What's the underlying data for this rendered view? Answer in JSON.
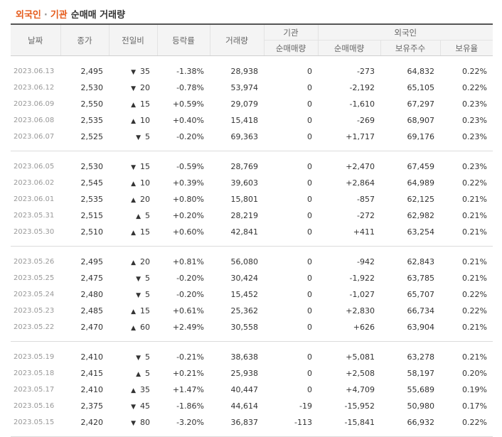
{
  "title": {
    "part1": "외국인",
    "separator": "·",
    "part2": "기관",
    "rest": "순매매 거래량"
  },
  "headers": {
    "date": "날짜",
    "close": "종가",
    "change": "전일비",
    "rate": "등락률",
    "volume": "거래량",
    "institution": "기관",
    "inst_net": "순매매량",
    "foreign": "외국인",
    "for_net": "순매매량",
    "shares": "보유주수",
    "hold_rate": "보유율"
  },
  "colors": {
    "up": "#d0021b",
    "down": "#1a6fc4",
    "accent": "#e55a1a"
  },
  "groups": [
    {
      "rows": [
        {
          "date": "2023.06.13",
          "close": "2,495",
          "dir": "down",
          "diff": "35",
          "rate": "-1.38%",
          "volume": "28,938",
          "inst": "0",
          "foreign": "-273",
          "shares": "64,832",
          "hold": "0.22%"
        },
        {
          "date": "2023.06.12",
          "close": "2,530",
          "dir": "down",
          "diff": "20",
          "rate": "-0.78%",
          "volume": "53,974",
          "inst": "0",
          "foreign": "-2,192",
          "shares": "65,105",
          "hold": "0.22%"
        },
        {
          "date": "2023.06.09",
          "close": "2,550",
          "dir": "up",
          "diff": "15",
          "rate": "+0.59%",
          "volume": "29,079",
          "inst": "0",
          "foreign": "-1,610",
          "shares": "67,297",
          "hold": "0.23%"
        },
        {
          "date": "2023.06.08",
          "close": "2,535",
          "dir": "up",
          "diff": "10",
          "rate": "+0.40%",
          "volume": "15,418",
          "inst": "0",
          "foreign": "-269",
          "shares": "68,907",
          "hold": "0.23%"
        },
        {
          "date": "2023.06.07",
          "close": "2,525",
          "dir": "down",
          "diff": "5",
          "rate": "-0.20%",
          "volume": "69,363",
          "inst": "0",
          "foreign": "+1,717",
          "shares": "69,176",
          "hold": "0.23%"
        }
      ]
    },
    {
      "rows": [
        {
          "date": "2023.06.05",
          "close": "2,530",
          "dir": "down",
          "diff": "15",
          "rate": "-0.59%",
          "volume": "28,769",
          "inst": "0",
          "foreign": "+2,470",
          "shares": "67,459",
          "hold": "0.23%"
        },
        {
          "date": "2023.06.02",
          "close": "2,545",
          "dir": "up",
          "diff": "10",
          "rate": "+0.39%",
          "volume": "39,603",
          "inst": "0",
          "foreign": "+2,864",
          "shares": "64,989",
          "hold": "0.22%"
        },
        {
          "date": "2023.06.01",
          "close": "2,535",
          "dir": "up",
          "diff": "20",
          "rate": "+0.80%",
          "volume": "15,801",
          "inst": "0",
          "foreign": "-857",
          "shares": "62,125",
          "hold": "0.21%"
        },
        {
          "date": "2023.05.31",
          "close": "2,515",
          "dir": "up",
          "diff": "5",
          "rate": "+0.20%",
          "volume": "28,219",
          "inst": "0",
          "foreign": "-272",
          "shares": "62,982",
          "hold": "0.21%"
        },
        {
          "date": "2023.05.30",
          "close": "2,510",
          "dir": "up",
          "diff": "15",
          "rate": "+0.60%",
          "volume": "42,841",
          "inst": "0",
          "foreign": "+411",
          "shares": "63,254",
          "hold": "0.21%"
        }
      ]
    },
    {
      "rows": [
        {
          "date": "2023.05.26",
          "close": "2,495",
          "dir": "up",
          "diff": "20",
          "rate": "+0.81%",
          "volume": "56,080",
          "inst": "0",
          "foreign": "-942",
          "shares": "62,843",
          "hold": "0.21%"
        },
        {
          "date": "2023.05.25",
          "close": "2,475",
          "dir": "down",
          "diff": "5",
          "rate": "-0.20%",
          "volume": "30,424",
          "inst": "0",
          "foreign": "-1,922",
          "shares": "63,785",
          "hold": "0.21%"
        },
        {
          "date": "2023.05.24",
          "close": "2,480",
          "dir": "down",
          "diff": "5",
          "rate": "-0.20%",
          "volume": "15,452",
          "inst": "0",
          "foreign": "-1,027",
          "shares": "65,707",
          "hold": "0.22%"
        },
        {
          "date": "2023.05.23",
          "close": "2,485",
          "dir": "up",
          "diff": "15",
          "rate": "+0.61%",
          "volume": "25,362",
          "inst": "0",
          "foreign": "+2,830",
          "shares": "66,734",
          "hold": "0.22%"
        },
        {
          "date": "2023.05.22",
          "close": "2,470",
          "dir": "up",
          "diff": "60",
          "rate": "+2.49%",
          "volume": "30,558",
          "inst": "0",
          "foreign": "+626",
          "shares": "63,904",
          "hold": "0.21%"
        }
      ]
    },
    {
      "rows": [
        {
          "date": "2023.05.19",
          "close": "2,410",
          "dir": "down",
          "diff": "5",
          "rate": "-0.21%",
          "volume": "38,638",
          "inst": "0",
          "foreign": "+5,081",
          "shares": "63,278",
          "hold": "0.21%"
        },
        {
          "date": "2023.05.18",
          "close": "2,415",
          "dir": "up",
          "diff": "5",
          "rate": "+0.21%",
          "volume": "25,938",
          "inst": "0",
          "foreign": "+2,508",
          "shares": "58,197",
          "hold": "0.20%"
        },
        {
          "date": "2023.05.17",
          "close": "2,410",
          "dir": "up",
          "diff": "35",
          "rate": "+1.47%",
          "volume": "40,447",
          "inst": "0",
          "foreign": "+4,709",
          "shares": "55,689",
          "hold": "0.19%"
        },
        {
          "date": "2023.05.16",
          "close": "2,375",
          "dir": "down",
          "diff": "45",
          "rate": "-1.86%",
          "volume": "44,614",
          "inst": "-19",
          "foreign": "-15,952",
          "shares": "50,980",
          "hold": "0.17%"
        },
        {
          "date": "2023.05.15",
          "close": "2,420",
          "dir": "down",
          "diff": "80",
          "rate": "-3.20%",
          "volume": "36,837",
          "inst": "-113",
          "foreign": "-15,841",
          "shares": "66,932",
          "hold": "0.22%"
        }
      ]
    }
  ]
}
